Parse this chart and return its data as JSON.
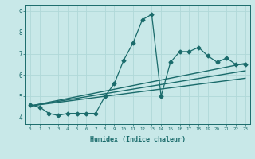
{
  "title": "",
  "xlabel": "Humidex (Indice chaleur)",
  "bg_color": "#c8e8e8",
  "grid_color": "#b0d8d8",
  "line_color": "#1a6b6b",
  "xlim": [
    -0.5,
    23.5
  ],
  "ylim": [
    3.7,
    9.3
  ],
  "xticks": [
    0,
    1,
    2,
    3,
    4,
    5,
    6,
    7,
    8,
    9,
    10,
    11,
    12,
    13,
    14,
    15,
    16,
    17,
    18,
    19,
    20,
    21,
    22,
    23
  ],
  "yticks": [
    4,
    5,
    6,
    7,
    8,
    9
  ],
  "series": [
    {
      "x": [
        0,
        1,
        2,
        3,
        4,
        5,
        6,
        7,
        8,
        9,
        10,
        11,
        12,
        13,
        14,
        15,
        16,
        17,
        18,
        19,
        20,
        21,
        22,
        23
      ],
      "y": [
        4.6,
        4.5,
        4.2,
        4.1,
        4.2,
        4.2,
        4.2,
        4.2,
        5.0,
        5.6,
        6.7,
        7.5,
        8.6,
        8.85,
        5.0,
        6.6,
        7.1,
        7.1,
        7.3,
        6.9,
        6.6,
        6.8,
        6.5,
        6.5
      ],
      "marker": "D",
      "markersize": 2.5,
      "linewidth": 0.9
    },
    {
      "x": [
        0,
        23
      ],
      "y": [
        4.55,
        6.55
      ],
      "marker": null,
      "markersize": 0,
      "linewidth": 1.0
    },
    {
      "x": [
        0,
        23
      ],
      "y": [
        4.55,
        6.2
      ],
      "marker": null,
      "markersize": 0,
      "linewidth": 1.0
    },
    {
      "x": [
        0,
        23
      ],
      "y": [
        4.55,
        5.85
      ],
      "marker": null,
      "markersize": 0,
      "linewidth": 1.0
    }
  ]
}
